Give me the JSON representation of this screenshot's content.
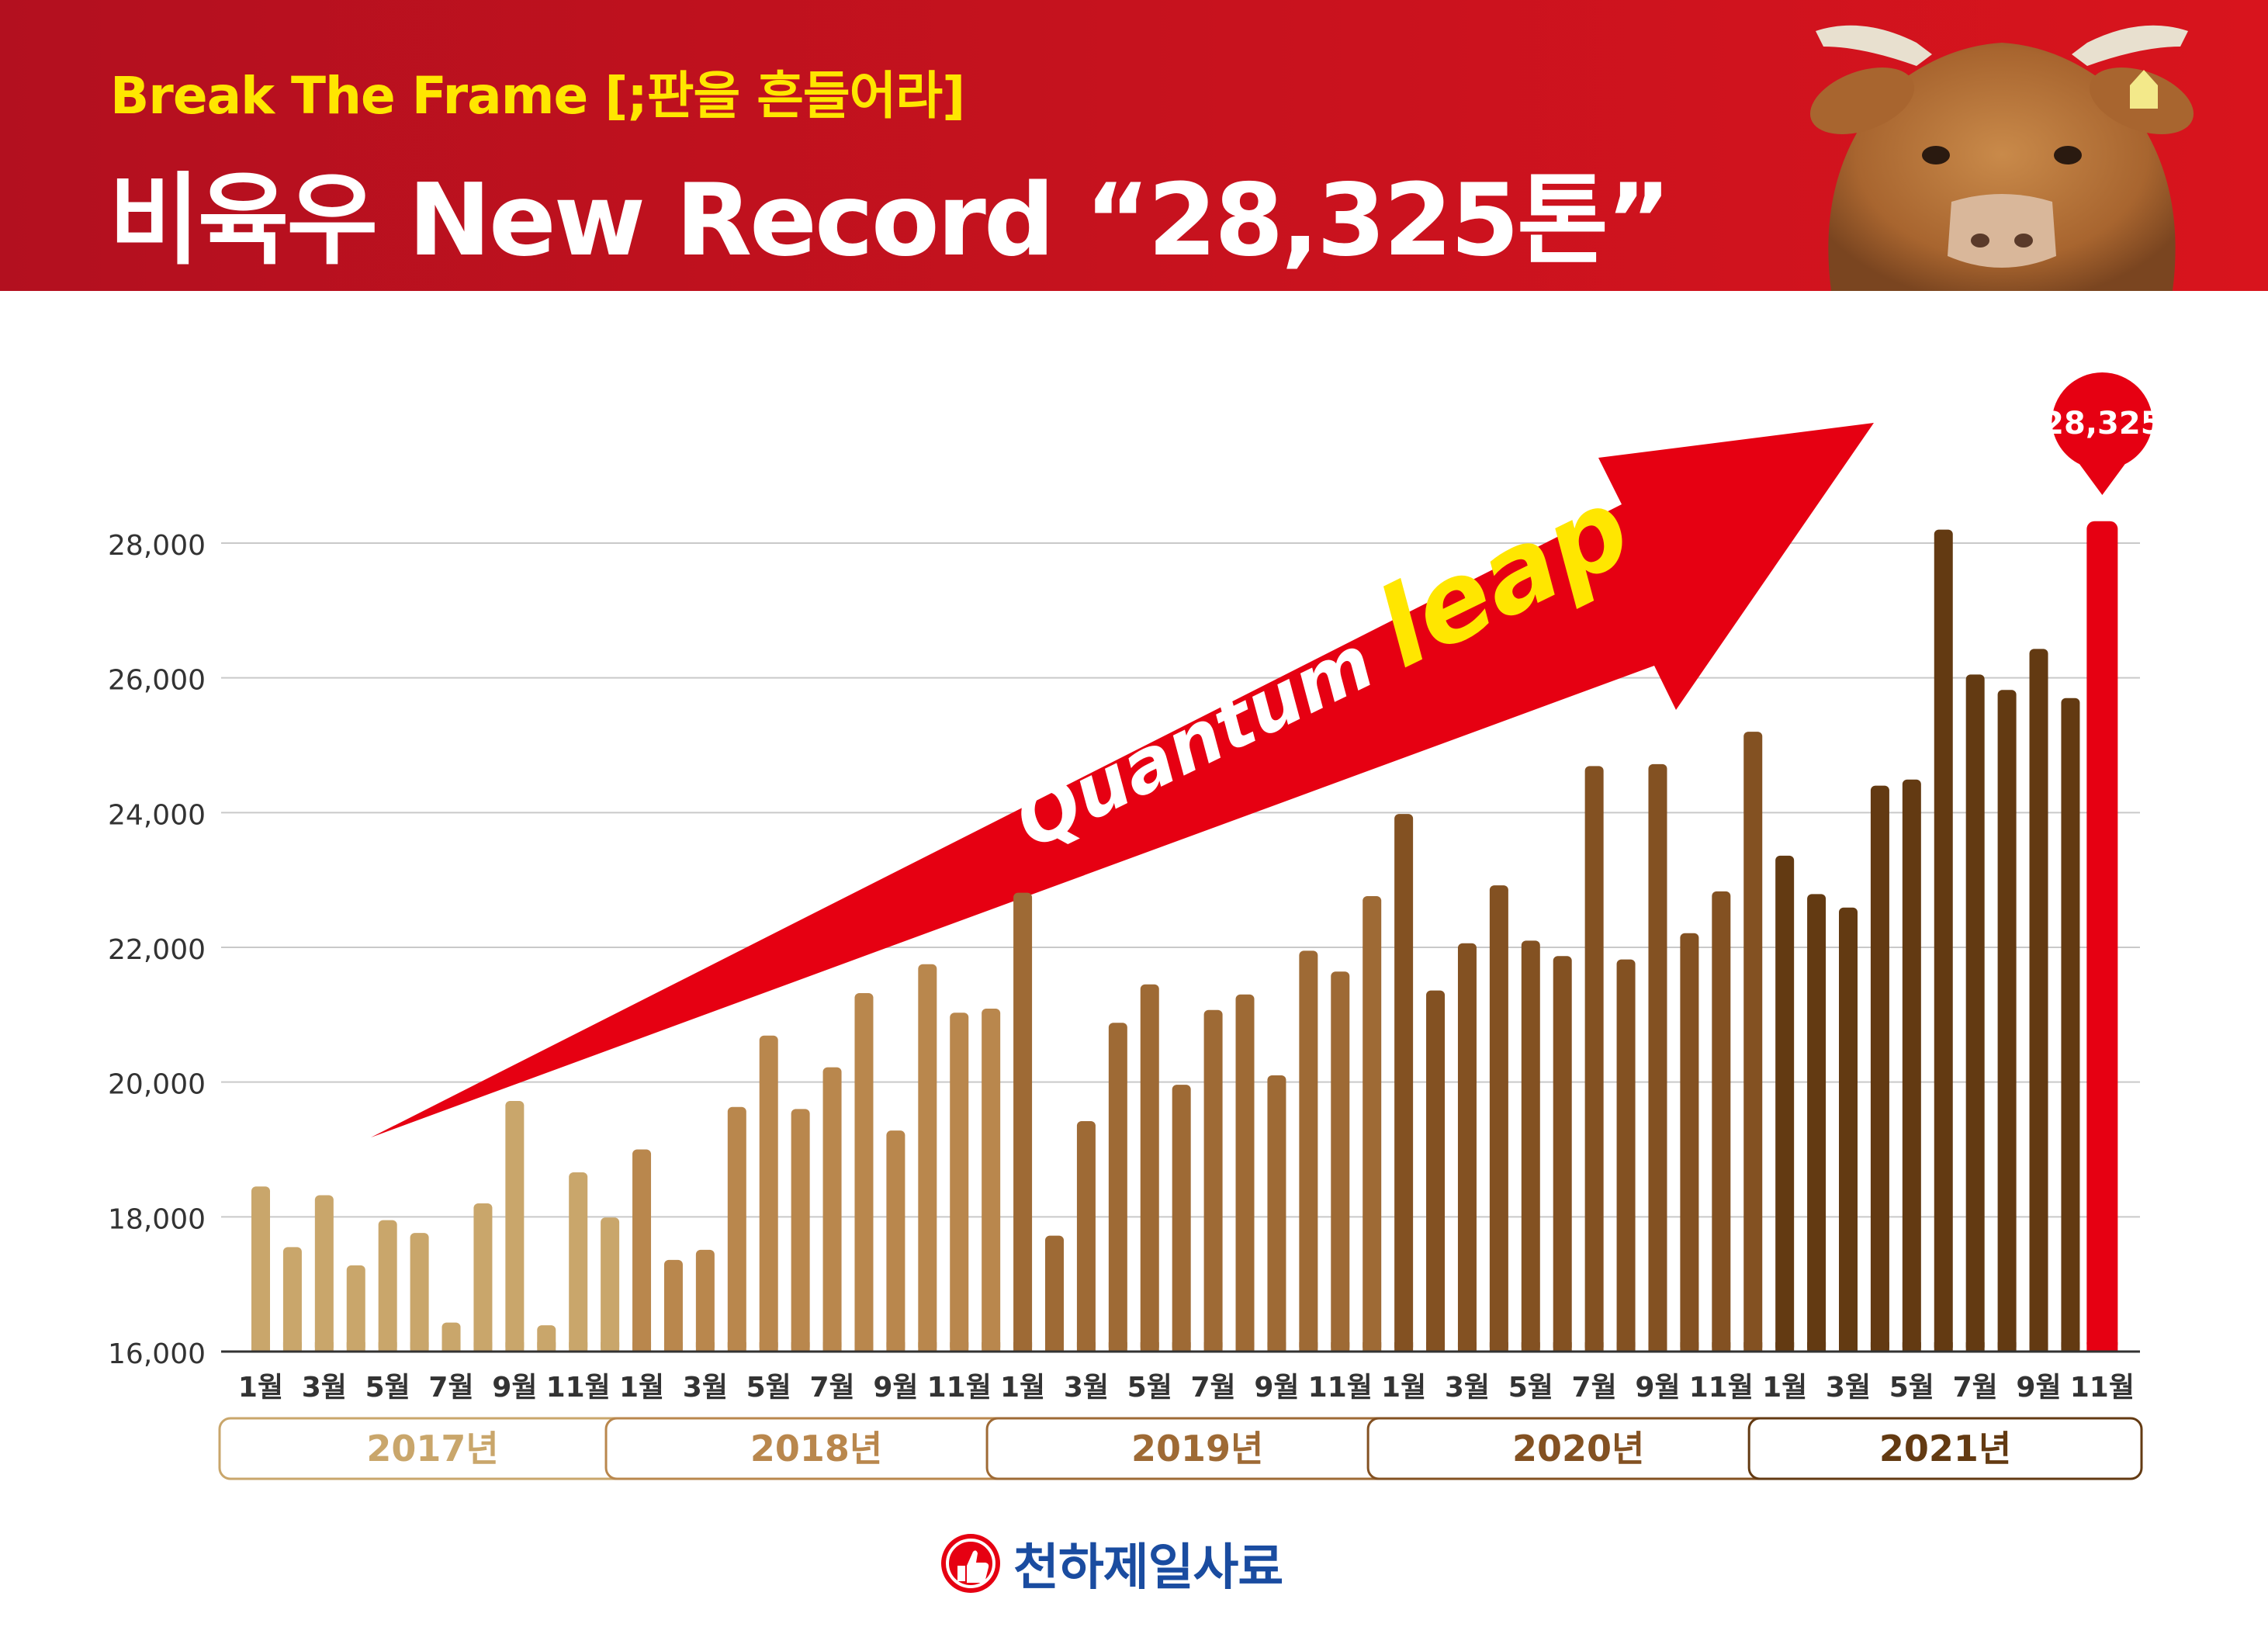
{
  "header": {
    "subtitle": "Break The Frame [;판을 흔들어라]",
    "title": "비육우 New Record “28,325톤”"
  },
  "annotations": {
    "arrow_word_white": "Quantum",
    "arrow_word_yellow": "leap",
    "callout": "28,325"
  },
  "brand": {
    "name": "천하제일사료",
    "icon": "thumbs-up-logo-icon"
  },
  "colors": {
    "header_red": "#c8121e",
    "subtitle_yellow": "#ffe600",
    "highlight_red": "#e60012",
    "brand_blue": "#1a4ca0",
    "year_2017": "#c9a66b",
    "year_2018": "#b9874d",
    "year_2019": "#9e6a35",
    "year_2020": "#835122",
    "year_2021": "#633a12"
  },
  "chart_data": {
    "type": "bar",
    "ylim": [
      16000,
      28500
    ],
    "yticks": [
      "16,000",
      "18,000",
      "20,000",
      "22,000",
      "24,000",
      "26,000",
      "28,000"
    ],
    "ytick_values": [
      16000,
      18000,
      20000,
      22000,
      24000,
      26000,
      28000
    ],
    "grid": true,
    "xtick_labels": [
      "1월",
      "3월",
      "5월",
      "7월",
      "9월",
      "11월"
    ],
    "groups": [
      {
        "label": "2017년",
        "values": [
          18450,
          17550,
          18320,
          17280,
          17950,
          17760,
          16430,
          18200,
          19720,
          16390,
          18660,
          17990
        ]
      },
      {
        "label": "2018년",
        "values": [
          19000,
          17360,
          17510,
          19630,
          20690,
          19600,
          20220,
          21320,
          19280,
          21750,
          21030,
          21090
        ]
      },
      {
        "label": "2019년",
        "values": [
          22810,
          17720,
          19420,
          20880,
          21450,
          19960,
          21070,
          21300,
          20100,
          21950,
          21640,
          22760
        ]
      },
      {
        "label": "2020년",
        "values": [
          23980,
          21360,
          22060,
          22920,
          22100,
          21870,
          24690,
          21820,
          24720,
          22210,
          22830,
          25200
        ]
      },
      {
        "label": "2021년",
        "values": [
          23360,
          22790,
          22590,
          24400,
          24490,
          28200,
          26050,
          25820,
          26430,
          25700,
          28325
        ]
      }
    ],
    "highlight": {
      "label": "11월 2021",
      "value": 28325
    }
  }
}
